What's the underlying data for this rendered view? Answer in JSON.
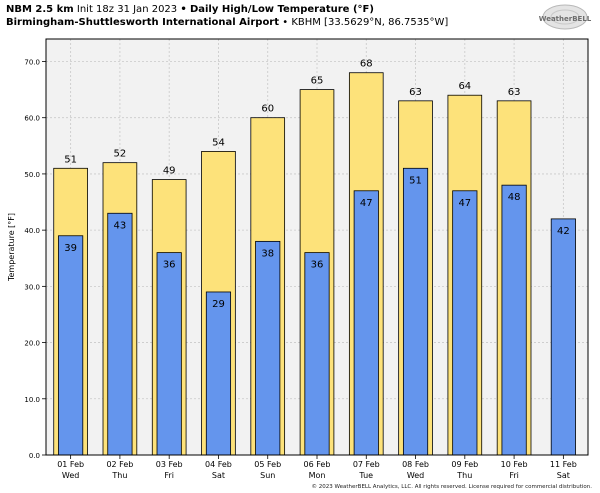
{
  "header": {
    "model": "NBM 2.5 km",
    "init": "Init 18z 31 Jan 2023",
    "bullet": "•",
    "product": "Daily High/Low Temperature (°F)",
    "station": "Birmingham-Shuttlesworth International Airport",
    "station_detail": "KBHM [33.5629°N, 86.7535°W]"
  },
  "logo": {
    "text": "WeatherBELL"
  },
  "copyright": "© 2023 WeatherBELL Analytics, LLC. All rights reserved. License required for commercial distribution.",
  "colors": {
    "high": "#fde27a",
    "low": "#6495ed",
    "plot_bg": "#f2f2f2",
    "edge": "#000000"
  },
  "chart_data": {
    "type": "bar",
    "title": "Daily High/Low Temperature (°F)",
    "ylabel": "Temperature [°F]",
    "ylim": [
      0,
      74
    ],
    "yticks": [
      0,
      10,
      20,
      30,
      40,
      50,
      60,
      70
    ],
    "ytick_labels": [
      "0.0",
      "10.0",
      "20.0",
      "30.0",
      "40.0",
      "50.0",
      "60.0",
      "70.0"
    ],
    "grid": true,
    "categories": [
      "01 Feb",
      "02 Feb",
      "03 Feb",
      "04 Feb",
      "05 Feb",
      "06 Feb",
      "07 Feb",
      "08 Feb",
      "09 Feb",
      "10 Feb",
      "11 Feb"
    ],
    "weekdays": [
      "Wed",
      "Thu",
      "Fri",
      "Sat",
      "Sun",
      "Mon",
      "Tue",
      "Wed",
      "Thu",
      "Fri",
      "Sat"
    ],
    "series": [
      {
        "key": "high",
        "values": [
          51,
          52,
          49,
          54,
          60,
          65,
          68,
          63,
          64,
          63,
          null
        ],
        "labels": [
          "51",
          "52",
          "49",
          "54",
          "60",
          "65",
          "68",
          "63",
          "64",
          "63",
          ""
        ]
      },
      {
        "key": "low",
        "values": [
          39,
          43,
          36,
          29,
          38,
          36,
          47,
          51,
          47,
          48,
          42
        ],
        "labels": [
          "39",
          "43",
          "36",
          "29",
          "38",
          "36",
          "47",
          "51",
          "47",
          "48",
          "42"
        ]
      }
    ]
  }
}
